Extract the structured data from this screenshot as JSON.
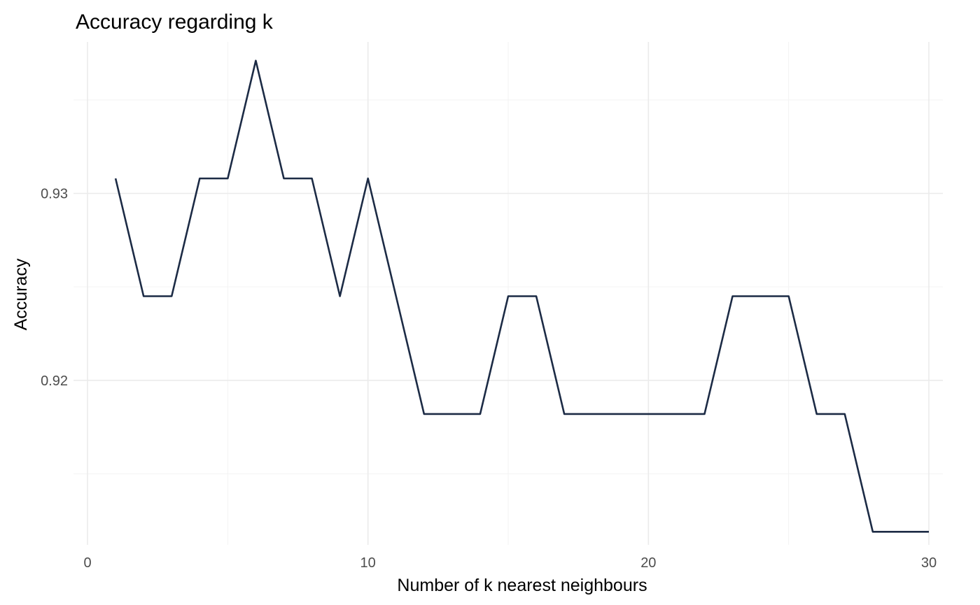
{
  "chart_data": {
    "type": "line",
    "title": "Accuracy regarding k",
    "xlabel": "Number of k nearest neighbours",
    "ylabel": "Accuracy",
    "xlim": [
      -0.5,
      30.5
    ],
    "ylim": [
      0.9112,
      0.9381
    ],
    "x_ticks": [
      0,
      10,
      20,
      30
    ],
    "x_tick_labels": [
      "0",
      "10",
      "20",
      "30"
    ],
    "x_minor_ticks": [
      5,
      15,
      25
    ],
    "y_ticks": [
      0.92,
      0.93
    ],
    "y_tick_labels": [
      "0.92",
      "0.93"
    ],
    "y_minor_ticks": [
      0.915,
      0.925,
      0.935
    ],
    "grid": true,
    "legend": "none",
    "line_color": "#1c2b45",
    "x": [
      1,
      2,
      3,
      4,
      5,
      6,
      7,
      8,
      9,
      10,
      11,
      12,
      13,
      14,
      15,
      16,
      17,
      18,
      19,
      20,
      21,
      22,
      23,
      24,
      25,
      26,
      27,
      28,
      29,
      30
    ],
    "values": [
      0.9308,
      0.9245,
      0.9245,
      0.9308,
      0.9308,
      0.9371,
      0.9308,
      0.9308,
      0.9245,
      0.9308,
      0.9245,
      0.9182,
      0.9182,
      0.9182,
      0.9245,
      0.9245,
      0.9182,
      0.9182,
      0.9182,
      0.9182,
      0.9182,
      0.9182,
      0.9245,
      0.9245,
      0.9245,
      0.9182,
      0.9182,
      0.9119,
      0.9119,
      0.9119
    ]
  }
}
